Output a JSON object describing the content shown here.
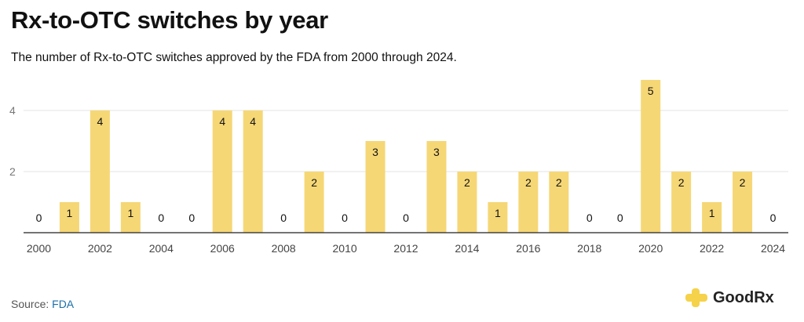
{
  "header": {
    "title": "Rx-to-OTC switches by year",
    "subtitle": "The number of Rx-to-OTC switches approved by the FDA from 2000 through 2024."
  },
  "footer": {
    "source_label": "Source:",
    "source_link": "FDA"
  },
  "brand": {
    "name": "GoodRx",
    "accent_color": "#f5d24a",
    "bar_color": "#f6d776"
  },
  "chart_data": {
    "type": "bar",
    "title": "Rx-to-OTC switches by year",
    "xlabel": "",
    "ylabel": "",
    "categories": [
      2000,
      2001,
      2002,
      2003,
      2004,
      2005,
      2006,
      2007,
      2008,
      2009,
      2010,
      2011,
      2012,
      2013,
      2014,
      2015,
      2016,
      2017,
      2018,
      2019,
      2020,
      2021,
      2022,
      2023,
      2024
    ],
    "values": [
      0,
      1,
      4,
      1,
      0,
      0,
      4,
      4,
      0,
      2,
      0,
      3,
      0,
      3,
      2,
      1,
      2,
      2,
      0,
      0,
      5,
      2,
      1,
      2,
      0
    ],
    "x_tick_labels": [
      "2000",
      "2002",
      "2004",
      "2006",
      "2008",
      "2010",
      "2012",
      "2014",
      "2016",
      "2018",
      "2020",
      "2022",
      "2024"
    ],
    "y_tick_labels": [
      "2",
      "4"
    ],
    "y_ticks": [
      2,
      4
    ],
    "ylim": [
      0,
      5
    ],
    "grid": true,
    "data_labels": true
  }
}
